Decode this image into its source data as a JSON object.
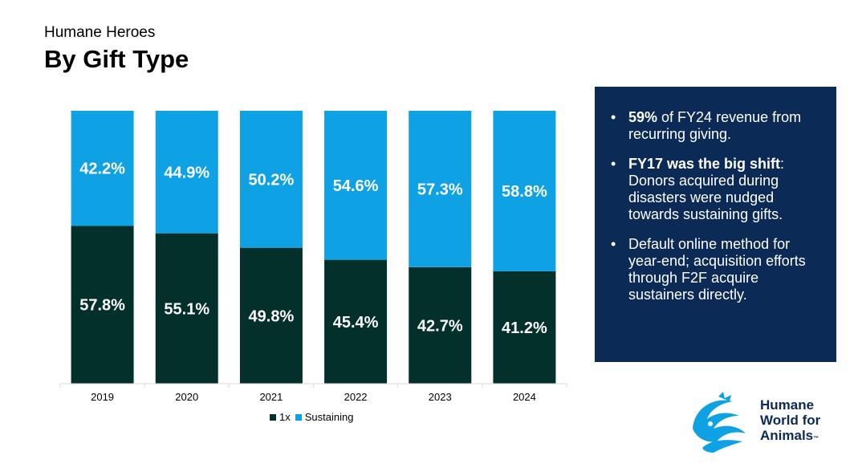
{
  "header": {
    "subtitle": "Humane Heroes",
    "title": "By Gift Type"
  },
  "chart_data": {
    "type": "bar",
    "stacked": true,
    "categories": [
      "2019",
      "2020",
      "2021",
      "2022",
      "2023",
      "2024"
    ],
    "series": [
      {
        "name": "1x",
        "values": [
          57.8,
          55.1,
          49.8,
          45.4,
          42.7,
          41.2
        ],
        "labels": [
          "57.8%",
          "55.1%",
          "49.8%",
          "45.4%",
          "42.7%",
          "41.2%"
        ],
        "color": "#03302a"
      },
      {
        "name": "Sustaining",
        "values": [
          42.2,
          44.9,
          50.2,
          54.6,
          57.3,
          58.8
        ],
        "labels": [
          "42.2%",
          "44.9%",
          "50.2%",
          "54.6%",
          "57.3%",
          "58.8%"
        ],
        "color": "#0ea2e4"
      }
    ],
    "ylim": [
      0,
      100
    ],
    "grid": false,
    "legend_position": "bottom"
  },
  "panel": {
    "bullets": [
      {
        "bold": "59%",
        "text": " of FY24 revenue from recurring giving."
      },
      {
        "bold": "FY17 was the big shift",
        "text": ": Donors acquired during disasters were nudged towards sustaining gifts."
      },
      {
        "bold": "",
        "text": "Default online method for year-end; acquisition efforts through F2F acquire sustainers directly."
      }
    ]
  },
  "logo": {
    "line1": "Humane",
    "line2": "World for",
    "line3": "Animals",
    "tm": "™"
  },
  "colors": {
    "panel_bg": "#0b2a55",
    "dark": "#03302a",
    "blue": "#0ea2e4"
  }
}
